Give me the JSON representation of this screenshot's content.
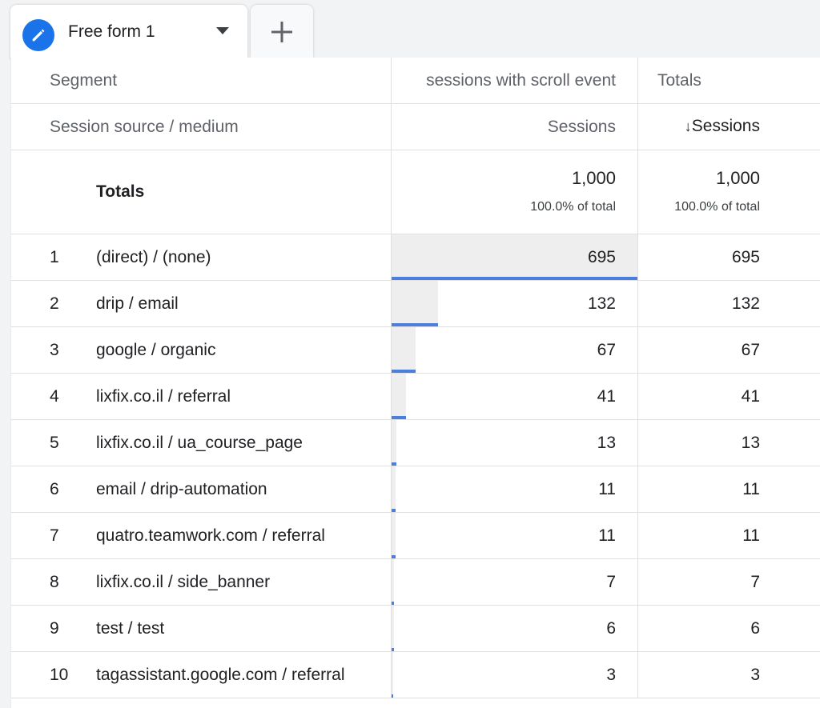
{
  "tabs": {
    "active_label": "Free form 1",
    "pencil_icon": "pencil-icon",
    "caret_icon": "caret-down-icon",
    "add_icon": "plus-icon"
  },
  "table": {
    "header1": {
      "segment": "Segment",
      "col1": "sessions with scroll event",
      "col2": "Totals"
    },
    "header2": {
      "dimension": "Session source / medium",
      "col1": "Sessions",
      "col2_arrow": "↓",
      "col2": "Sessions"
    },
    "totals": {
      "label": "Totals",
      "col1_value": "1,000",
      "col1_pct": "100.0% of total",
      "col2_value": "1,000",
      "col2_pct": "100.0% of total"
    },
    "rows": [
      {
        "rank": "1",
        "dimension": "(direct) / (none)",
        "col1": "695",
        "col2": "695",
        "share": 0.695
      },
      {
        "rank": "2",
        "dimension": "drip / email",
        "col1": "132",
        "col2": "132",
        "share": 0.132
      },
      {
        "rank": "3",
        "dimension": "google / organic",
        "col1": "67",
        "col2": "67",
        "share": 0.067
      },
      {
        "rank": "4",
        "dimension": "lixfix.co.il / referral",
        "col1": "41",
        "col2": "41",
        "share": 0.041
      },
      {
        "rank": "5",
        "dimension": "lixfix.co.il / ua_course_page",
        "col1": "13",
        "col2": "13",
        "share": 0.013
      },
      {
        "rank": "6",
        "dimension": "email / drip-automation",
        "col1": "11",
        "col2": "11",
        "share": 0.011
      },
      {
        "rank": "7",
        "dimension": "quatro.teamwork.com / referral",
        "col1": "11",
        "col2": "11",
        "share": 0.011
      },
      {
        "rank": "8",
        "dimension": "lixfix.co.il / side_banner",
        "col1": "7",
        "col2": "7",
        "share": 0.007
      },
      {
        "rank": "9",
        "dimension": "test / test",
        "col1": "6",
        "col2": "6",
        "share": 0.006
      },
      {
        "rank": "10",
        "dimension": "tagassistant.google.com / referral",
        "col1": "3",
        "col2": "3",
        "share": 0.003
      }
    ],
    "colors": {
      "bar_bg": "#eeeeee",
      "bar_line": "#4c7fdc",
      "accent": "#1a73e8"
    }
  }
}
